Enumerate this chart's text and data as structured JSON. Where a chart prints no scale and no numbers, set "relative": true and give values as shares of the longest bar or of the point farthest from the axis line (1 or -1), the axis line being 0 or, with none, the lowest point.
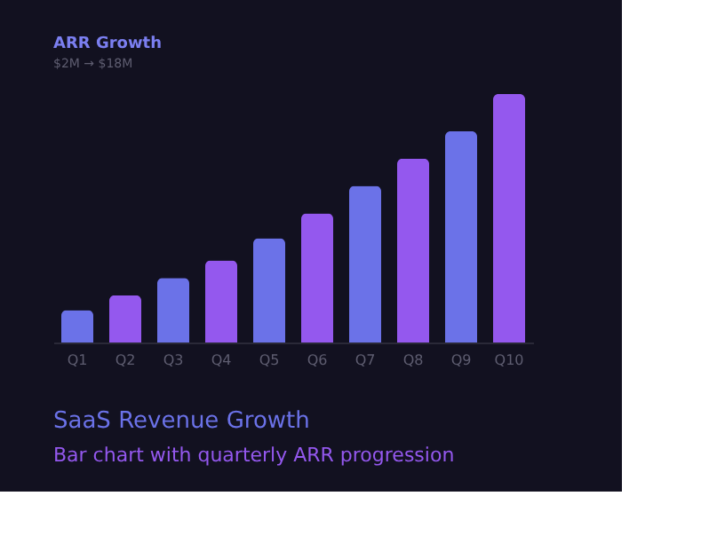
{
  "chart_data": {
    "type": "bar",
    "title": "ARR Growth",
    "subtitle": "$2M → $18M",
    "categories": [
      "Q1",
      "Q2",
      "Q3",
      "Q4",
      "Q5",
      "Q6",
      "Q7",
      "Q8",
      "Q9",
      "Q10"
    ],
    "values": [
      0.13,
      0.19,
      0.26,
      0.33,
      0.42,
      0.52,
      0.63,
      0.74,
      0.85,
      1.0
    ],
    "colors": [
      "#6b72e8",
      "#9458ee",
      "#6b72e8",
      "#9458ee",
      "#6b72e8",
      "#9458ee",
      "#6b72e8",
      "#9458ee",
      "#6b72e8",
      "#9458ee"
    ],
    "relative": true,
    "annotations": [
      "SaaS Revenue Growth",
      "Bar chart with quarterly ARR progression"
    ]
  }
}
